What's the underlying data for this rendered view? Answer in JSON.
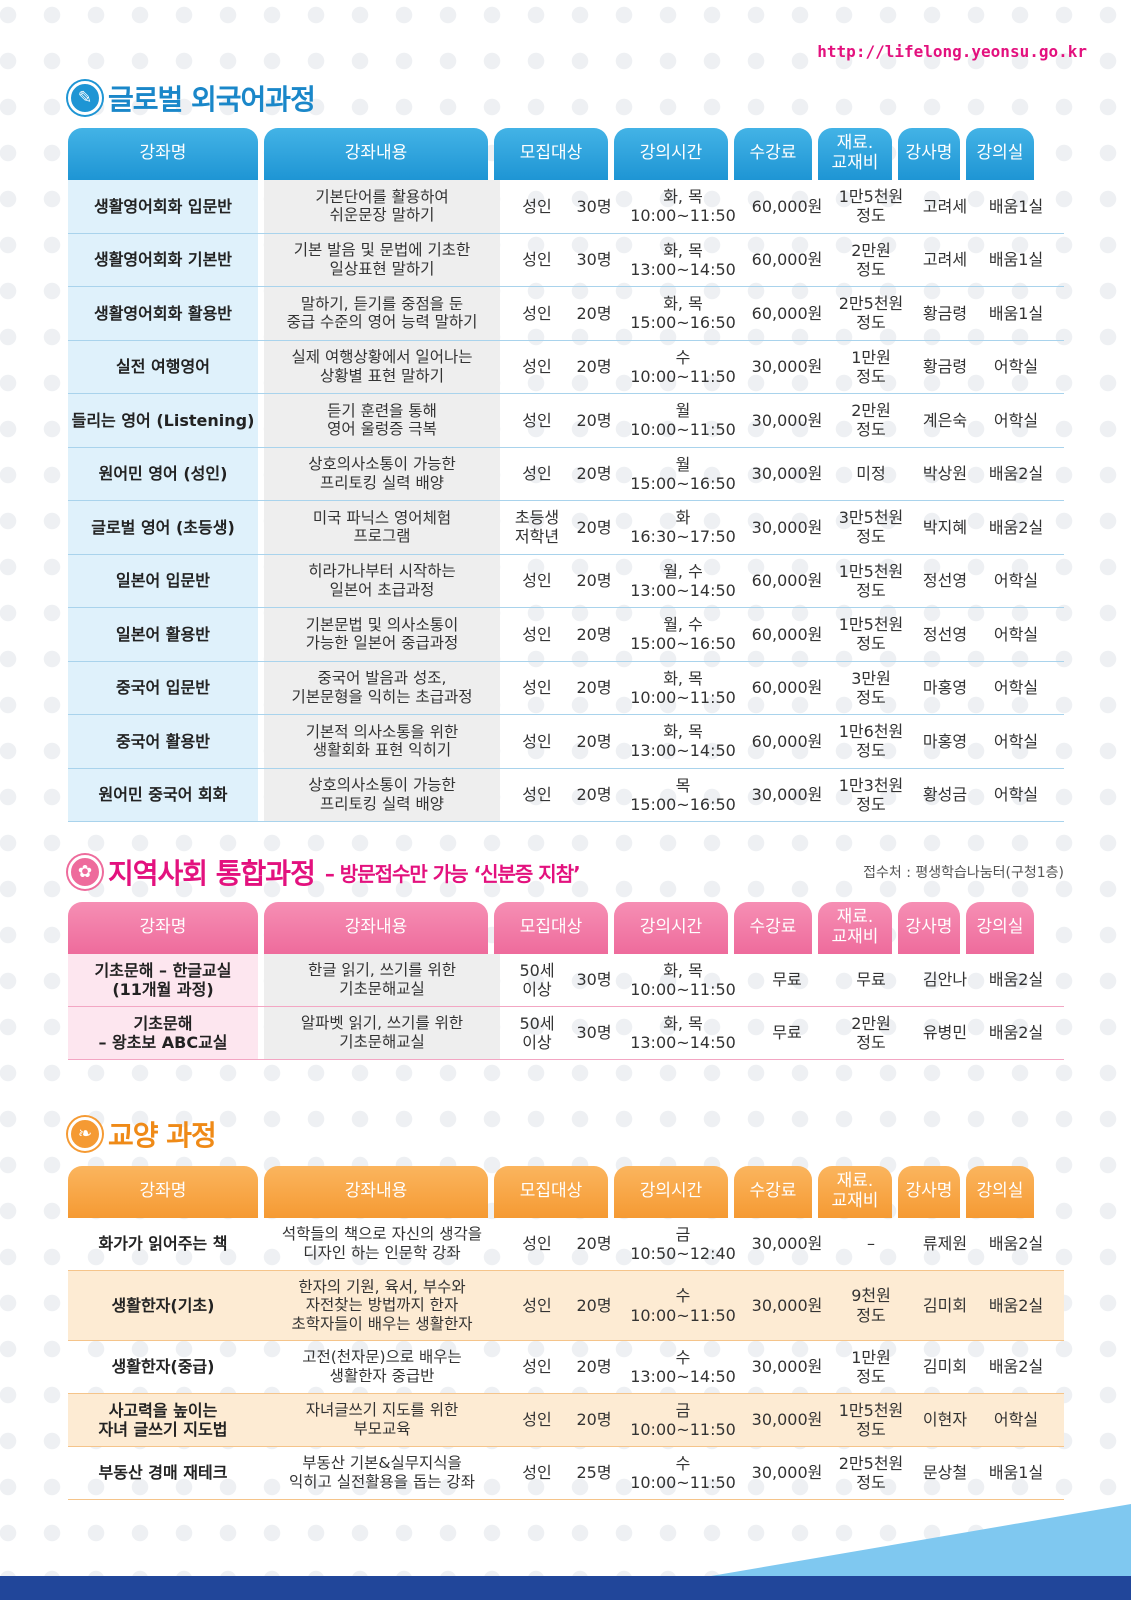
{
  "url": "http://lifelong.yeonsu.go.kr",
  "headers": [
    "강좌명",
    "강좌내용",
    "모집대상",
    "강의시간",
    "수강료",
    "재료.\n교재비",
    "강사명",
    "강의실"
  ],
  "sections": {
    "global": {
      "title": "글로벌 외국어과정",
      "icon": "pencil-icon",
      "rows": [
        {
          "name": "생활영어회화 입문반",
          "desc": "기본단어를 활용하여\n쉬운문장 말하기",
          "target": "성인",
          "count": "30명",
          "time": "화, 목\n10:00~11:50",
          "fee": "60,000원",
          "material": "1만5천원\n정도",
          "teacher": "고려세",
          "room": "배움1실"
        },
        {
          "name": "생활영어회화 기본반",
          "desc": "기본 발음 및 문법에 기초한\n일상표현 말하기",
          "target": "성인",
          "count": "30명",
          "time": "화, 목\n13:00~14:50",
          "fee": "60,000원",
          "material": "2만원\n정도",
          "teacher": "고려세",
          "room": "배움1실"
        },
        {
          "name": "생활영어회화 활용반",
          "desc": "말하기, 듣기를 중점을 둔\n중급 수준의 영어 능력 말하기",
          "target": "성인",
          "count": "20명",
          "time": "화, 목\n15:00~16:50",
          "fee": "60,000원",
          "material": "2만5천원\n정도",
          "teacher": "황금령",
          "room": "배움1실"
        },
        {
          "name": "실전 여행영어",
          "desc": "실제 여행상황에서 일어나는\n상황별 표현 말하기",
          "target": "성인",
          "count": "20명",
          "time": "수\n10:00~11:50",
          "fee": "30,000원",
          "material": "1만원\n정도",
          "teacher": "황금령",
          "room": "어학실"
        },
        {
          "name": "들리는 영어 (Listening)",
          "desc": "듣기 훈련을 통해\n영어 울렁증 극복",
          "target": "성인",
          "count": "20명",
          "time": "월\n10:00~11:50",
          "fee": "30,000원",
          "material": "2만원\n정도",
          "teacher": "계은숙",
          "room": "어학실"
        },
        {
          "name": "원어민 영어 (성인)",
          "desc": "상호의사소통이 가능한\n프리토킹 실력 배양",
          "target": "성인",
          "count": "20명",
          "time": "월\n15:00~16:50",
          "fee": "30,000원",
          "material": "미정",
          "teacher": "박상원",
          "room": "배움2실"
        },
        {
          "name": "글로벌 영어 (초등생)",
          "desc": "미국 파닉스 영어체험\n프로그램",
          "target": "초등생\n저학년",
          "count": "20명",
          "time": "화\n16:30~17:50",
          "fee": "30,000원",
          "material": "3만5천원\n정도",
          "teacher": "박지혜",
          "room": "배움2실"
        },
        {
          "name": "일본어 입문반",
          "desc": "히라가나부터 시작하는\n일본어 초급과정",
          "target": "성인",
          "count": "20명",
          "time": "월, 수\n13:00~14:50",
          "fee": "60,000원",
          "material": "1만5천원\n정도",
          "teacher": "정선영",
          "room": "어학실"
        },
        {
          "name": "일본어 활용반",
          "desc": "기본문법 및 의사소통이\n가능한 일본어 중급과정",
          "target": "성인",
          "count": "20명",
          "time": "월, 수\n15:00~16:50",
          "fee": "60,000원",
          "material": "1만5천원\n정도",
          "teacher": "정선영",
          "room": "어학실"
        },
        {
          "name": "중국어 입문반",
          "desc": "중국어 발음과 성조,\n기본문형을 익히는 초급과정",
          "target": "성인",
          "count": "20명",
          "time": "화, 목\n10:00~11:50",
          "fee": "60,000원",
          "material": "3만원\n정도",
          "teacher": "마홍영",
          "room": "어학실"
        },
        {
          "name": "중국어 활용반",
          "desc": "기본적 의사소통을 위한\n생활회화 표현 익히기",
          "target": "성인",
          "count": "20명",
          "time": "화, 목\n13:00~14:50",
          "fee": "60,000원",
          "material": "1만6천원\n정도",
          "teacher": "마홍영",
          "room": "어학실"
        },
        {
          "name": "원어민 중국어 회화",
          "desc": "상호의사소통이 가능한\n프리토킹 실력 배양",
          "target": "성인",
          "count": "20명",
          "time": "목\n15:00~16:50",
          "fee": "30,000원",
          "material": "1만3천원\n정도",
          "teacher": "황성금",
          "room": "어학실"
        }
      ]
    },
    "community": {
      "title": "지역사회 통합과정",
      "subtitle": "– 방문접수만 가능 ‘신분증 지참’",
      "note": "접수처 : 평생학습나눔터(구청1층)",
      "icon": "flower-icon",
      "rows": [
        {
          "name": "기초문해 – 한글교실\n(11개월 과정)",
          "desc": "한글 읽기, 쓰기를 위한\n기초문해교실",
          "target": "50세\n이상",
          "count": "30명",
          "time": "화, 목\n10:00~11:50",
          "fee": "무료",
          "material": "무료",
          "teacher": "김안나",
          "room": "배움2실"
        },
        {
          "name": "기초문해\n– 왕초보 ABC교실",
          "desc": "알파벳 읽기, 쓰기를 위한\n기초문해교실",
          "target": "50세\n이상",
          "count": "30명",
          "time": "화, 목\n13:00~14:50",
          "fee": "무료",
          "material": "2만원\n정도",
          "teacher": "유병민",
          "room": "배움2실"
        }
      ]
    },
    "culture": {
      "title": "교양 과정",
      "icon": "book-icon",
      "rows": [
        {
          "name": "화가가 읽어주는 책",
          "desc": "석학들의 책으로 자신의 생각을\n디자인 하는 인문학 강좌",
          "target": "성인",
          "count": "20명",
          "time": "금\n10:50~12:40",
          "fee": "30,000원",
          "material": "–",
          "teacher": "류제원",
          "room": "배움2실"
        },
        {
          "name": "생활한자(기초)",
          "desc": "한자의 기원, 육서, 부수와\n자전찾는 방법까지 한자\n초학자들이 배우는 생활한자",
          "target": "성인",
          "count": "20명",
          "time": "수\n10:00~11:50",
          "fee": "30,000원",
          "material": "9천원\n정도",
          "teacher": "김미회",
          "room": "배움2실"
        },
        {
          "name": "생활한자(중급)",
          "desc": "고전(천자문)으로 배우는\n생활한자 중급반",
          "target": "성인",
          "count": "20명",
          "time": "수\n13:00~14:50",
          "fee": "30,000원",
          "material": "1만원\n정도",
          "teacher": "김미회",
          "room": "배움2실"
        },
        {
          "name": "사고력을 높이는\n자녀 글쓰기 지도법",
          "desc": "자녀글쓰기 지도를 위한\n부모교육",
          "target": "성인",
          "count": "20명",
          "time": "금\n10:00~11:50",
          "fee": "30,000원",
          "material": "1만5천원\n정도",
          "teacher": "이현자",
          "room": "어학실"
        },
        {
          "name": "부동산 경매 재테크",
          "desc": "부동산 기본&실무지식을\n익히고 실전활용을 돕는 강좌",
          "target": "성인",
          "count": "25명",
          "time": "수\n10:00~11:50",
          "fee": "30,000원",
          "material": "2만5천원\n정도",
          "teacher": "문상철",
          "room": "배움1실"
        }
      ]
    }
  }
}
